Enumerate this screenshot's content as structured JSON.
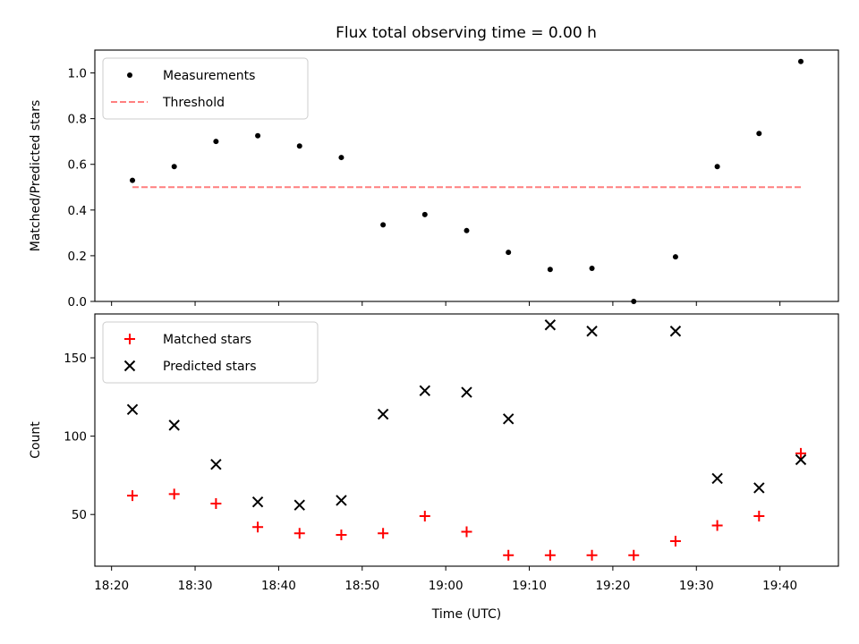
{
  "figure": {
    "title": "Flux total observing time = 0.00 h"
  },
  "chart_data": [
    {
      "type": "scatter",
      "name": "ratio-panel",
      "ylabel": "Matched/Predicted stars",
      "xlabel": "",
      "ylim": [
        0,
        1.1
      ],
      "xlim": [
        "18:18",
        "19:47"
      ],
      "y_ticks": [
        "0.0",
        "0.2",
        "0.4",
        "0.6",
        "0.8",
        "1.0"
      ],
      "x_ticks": [
        "18:20",
        "18:30",
        "18:40",
        "18:50",
        "19:00",
        "19:10",
        "19:20",
        "19:30",
        "19:40"
      ],
      "x_tick_labels_shown": false,
      "legend_position": "upper left",
      "grid": false,
      "series": [
        {
          "name": "Measurements",
          "marker": "dot",
          "color": "#000000",
          "x": [
            "18:22:30",
            "18:27:30",
            "18:32:30",
            "18:37:30",
            "18:42:30",
            "18:47:30",
            "18:52:30",
            "18:57:30",
            "19:02:30",
            "19:07:30",
            "19:12:30",
            "19:17:30",
            "19:22:30",
            "19:27:30",
            "19:32:30",
            "19:37:30",
            "19:42:30"
          ],
          "y": [
            0.53,
            0.59,
            0.7,
            0.725,
            0.68,
            0.63,
            0.335,
            0.38,
            0.31,
            0.215,
            0.14,
            0.145,
            0.0,
            0.195,
            0.59,
            0.735,
            1.05
          ]
        },
        {
          "name": "Threshold",
          "line": "dashed",
          "color": "#ff7f7f",
          "x": [
            "18:22:30",
            "19:42:30"
          ],
          "y": [
            0.5,
            0.5
          ]
        }
      ]
    },
    {
      "type": "scatter",
      "name": "count-panel",
      "ylabel": "Count",
      "xlabel": "Time (UTC)",
      "ylim": [
        17,
        178
      ],
      "xlim": [
        "18:18",
        "19:47"
      ],
      "y_ticks": [
        "50",
        "100",
        "150"
      ],
      "x_ticks": [
        "18:20",
        "18:30",
        "18:40",
        "18:50",
        "19:00",
        "19:10",
        "19:20",
        "19:30",
        "19:40"
      ],
      "x_tick_labels_shown": true,
      "legend_position": "upper left",
      "grid": false,
      "series": [
        {
          "name": "Matched stars",
          "marker": "plus",
          "color": "#ff0000",
          "x": [
            "18:22:30",
            "18:27:30",
            "18:32:30",
            "18:37:30",
            "18:42:30",
            "18:47:30",
            "18:52:30",
            "18:57:30",
            "19:02:30",
            "19:07:30",
            "19:12:30",
            "19:17:30",
            "19:22:30",
            "19:27:30",
            "19:32:30",
            "19:37:30",
            "19:42:30"
          ],
          "y": [
            62,
            63,
            57,
            42,
            38,
            37,
            38,
            49,
            39,
            24,
            24,
            24,
            24,
            33,
            43,
            49,
            89
          ]
        },
        {
          "name": "Predicted stars",
          "marker": "x",
          "color": "#000000",
          "x": [
            "18:22:30",
            "18:27:30",
            "18:32:30",
            "18:37:30",
            "18:42:30",
            "18:47:30",
            "18:52:30",
            "18:57:30",
            "19:02:30",
            "19:07:30",
            "19:12:30",
            "19:17:30",
            "19:27:30",
            "19:32:30",
            "19:37:30",
            "19:42:30"
          ],
          "y": [
            117,
            107,
            82,
            58,
            56,
            59,
            114,
            129,
            128,
            111,
            171,
            167,
            167,
            73,
            67,
            85
          ]
        }
      ]
    }
  ]
}
